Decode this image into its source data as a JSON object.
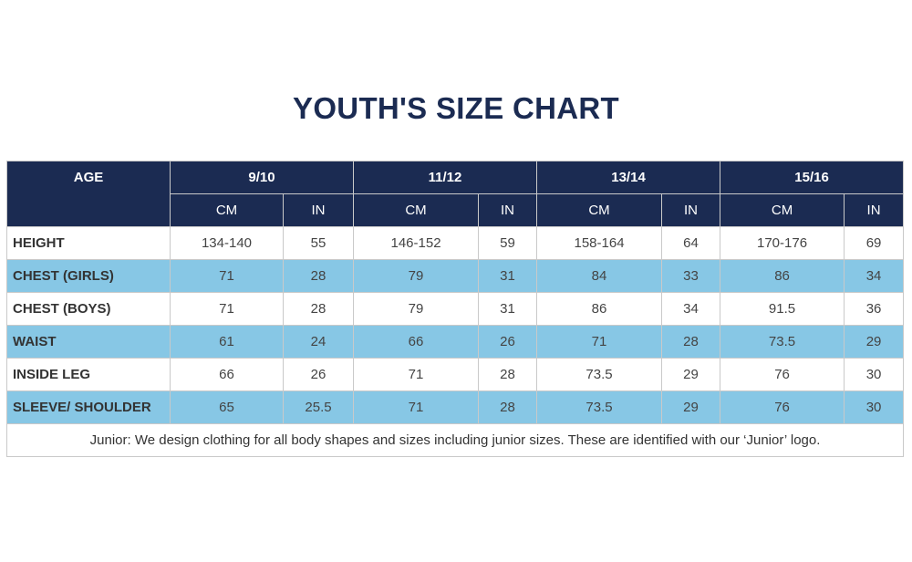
{
  "title": "YOUTH'S SIZE CHART",
  "header": {
    "age_label": "AGE",
    "ages": [
      "9/10",
      "11/12",
      "13/14",
      "15/16"
    ],
    "units": [
      "CM",
      "IN",
      "CM",
      "IN",
      "CM",
      "IN",
      "CM",
      "IN"
    ]
  },
  "rows": [
    {
      "label": "HEIGHT",
      "values": [
        "134-140",
        "55",
        "146-152",
        "59",
        "158-164",
        "64",
        "170-176",
        "69"
      ]
    },
    {
      "label": "CHEST (GIRLS)",
      "values": [
        "71",
        "28",
        "79",
        "31",
        "84",
        "33",
        "86",
        "34"
      ]
    },
    {
      "label": "CHEST (BOYS)",
      "values": [
        "71",
        "28",
        "79",
        "31",
        "86",
        "34",
        "91.5",
        "36"
      ]
    },
    {
      "label": "WAIST",
      "values": [
        "61",
        "24",
        "66",
        "26",
        "71",
        "28",
        "73.5",
        "29"
      ]
    },
    {
      "label": "INSIDE LEG",
      "values": [
        "66",
        "26",
        "71",
        "28",
        "73.5",
        "29",
        "76",
        "30"
      ]
    },
    {
      "label": "SLEEVE/ SHOULDER",
      "values": [
        "65",
        "25.5",
        "71",
        "28",
        "73.5",
        "29",
        "76",
        "30"
      ]
    }
  ],
  "footnote": "Junior: We design clothing for all body shapes and sizes including junior sizes. These are identified with our ‘Junior’ logo.",
  "colors": {
    "navy": "#1b2b52",
    "row_shade": "#87c7e5",
    "border": "#c9c9c9"
  }
}
